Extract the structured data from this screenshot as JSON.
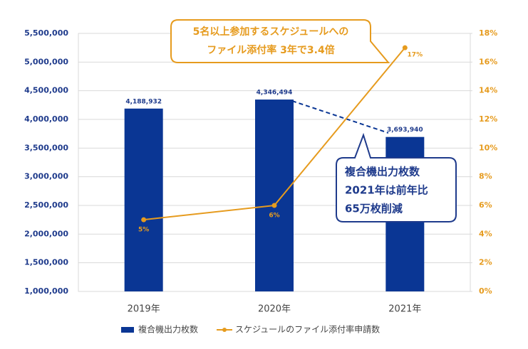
{
  "chart_data": {
    "type": "bar",
    "categories": [
      "2019年",
      "2020年",
      "2021年"
    ],
    "series": [
      {
        "name": "複合機出力枚数",
        "type": "bar",
        "color": "#0a3694",
        "values": [
          4188932,
          4346494,
          3693940
        ],
        "value_labels": [
          "4,188,932",
          "4,346,494",
          "3,693,940"
        ]
      },
      {
        "name": "スケジュールのファイル添付率申請数",
        "type": "line",
        "axis": "y2",
        "color": "#e69b1e",
        "values": [
          5,
          6,
          17
        ],
        "value_labels": [
          "5%",
          "6%",
          "17%"
        ]
      }
    ],
    "ylim": [
      1000000,
      5500000
    ],
    "yticks": [
      {
        "value": 1000000,
        "label": "1,000,000"
      },
      {
        "value": 1500000,
        "label": "1,500,000"
      },
      {
        "value": 2000000,
        "label": "2,000,000"
      },
      {
        "value": 2500000,
        "label": "2,500,000"
      },
      {
        "value": 3000000,
        "label": "3,000,000"
      },
      {
        "value": 3500000,
        "label": "3,500,000"
      },
      {
        "value": 4000000,
        "label": "4,000,000"
      },
      {
        "value": 4500000,
        "label": "4,500,000"
      },
      {
        "value": 5000000,
        "label": "5,000,000"
      },
      {
        "value": 5500000,
        "label": "5,500,000"
      }
    ],
    "y2lim": [
      0,
      18
    ],
    "y2ticks": [
      {
        "value": 0,
        "label": "0%"
      },
      {
        "value": 2,
        "label": "2%"
      },
      {
        "value": 4,
        "label": "4%"
      },
      {
        "value": 6,
        "label": "6%"
      },
      {
        "value": 8,
        "label": "8%"
      },
      {
        "value": 10,
        "label": "10%"
      },
      {
        "value": 12,
        "label": "12%"
      },
      {
        "value": 14,
        "label": "14%"
      },
      {
        "value": 16,
        "label": "16%"
      },
      {
        "value": 18,
        "label": "18%"
      }
    ],
    "grid": true,
    "legend": "bottom",
    "annotations": [
      {
        "lines": [
          "5名以上参加するスケジュールへの",
          "ファイル添付率 3年で3.4倍"
        ]
      },
      {
        "lines": [
          "複合機出力枚数",
          "2021年は前年比",
          "65万枚削減"
        ]
      }
    ]
  }
}
